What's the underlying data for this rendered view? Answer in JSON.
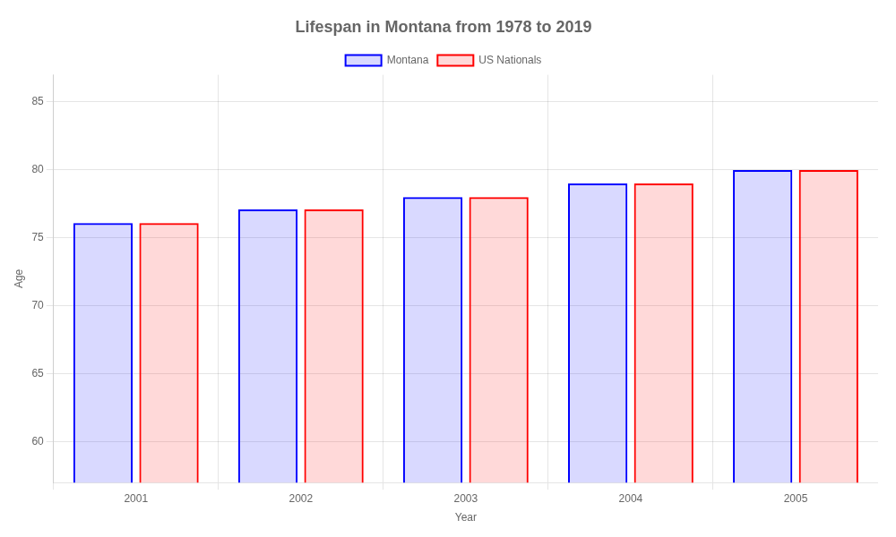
{
  "chart_data": {
    "type": "bar",
    "title": "Lifespan in Montana from 1978 to 2019",
    "xlabel": "Year",
    "ylabel": "Age",
    "categories": [
      "2001",
      "2002",
      "2003",
      "2004",
      "2005"
    ],
    "series": [
      {
        "name": "Montana",
        "color": "#0000ff",
        "values": [
          76.1,
          77.1,
          78.0,
          79.0,
          80.0
        ]
      },
      {
        "name": "US Nationals",
        "color": "#ff0000",
        "values": [
          76.1,
          77.1,
          78.0,
          79.0,
          80.0
        ]
      }
    ],
    "ylim": [
      57,
      87
    ],
    "yticks": [
      60,
      65,
      70,
      75,
      80,
      85
    ],
    "grid": true,
    "legend": "top"
  }
}
